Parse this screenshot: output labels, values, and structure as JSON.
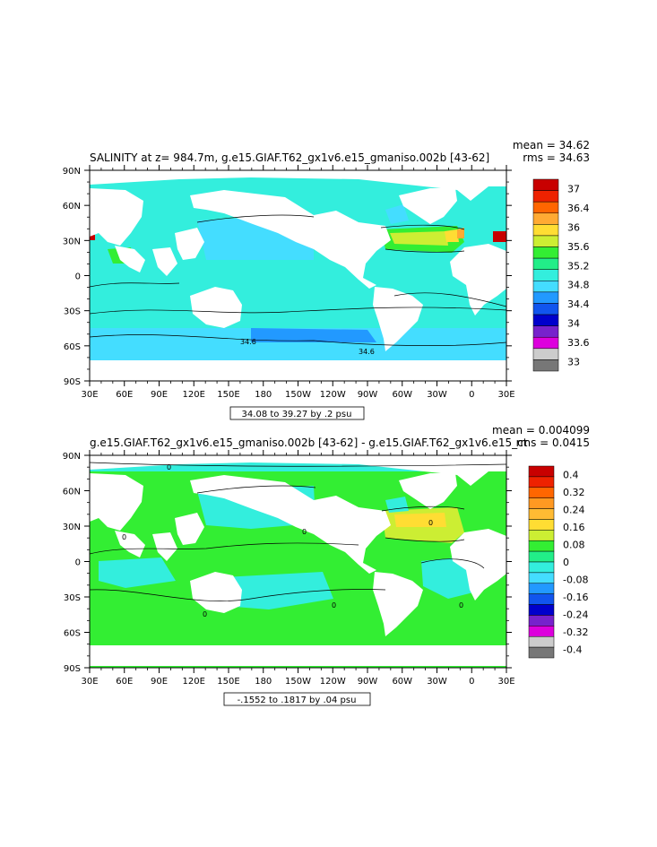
{
  "chart_data": [
    {
      "type": "heatmap",
      "title": "SALINITY at z= 984.7m, g.e15.GIAF.T62_gx1v6.e15_gmaniso.002b [43-62]",
      "stats": {
        "mean": "mean = 34.62",
        "rms": "rms = 34.63"
      },
      "x_ticks": [
        "30E",
        "60E",
        "90E",
        "120E",
        "150E",
        "180",
        "150W",
        "120W",
        "90W",
        "60W",
        "30W",
        "0",
        "30E"
      ],
      "y_ticks": [
        "90N",
        "60N",
        "30N",
        "0",
        "30S",
        "60S",
        "90S"
      ],
      "range_label": "34.08 to 39.27 by .2 psu",
      "contour_labels": [
        "34.6",
        "34.6"
      ],
      "colorbar": {
        "labels": [
          "37",
          "36.4",
          "36",
          "35.6",
          "35.2",
          "34.8",
          "34.4",
          "34",
          "33.6",
          "33"
        ],
        "colors": [
          "#c80000",
          "#ee2200",
          "#ff6600",
          "#ffaa33",
          "#ffdd33",
          "#ccee33",
          "#33ee33",
          "#22ee88",
          "#33eedd",
          "#44ddff",
          "#2299ff",
          "#1155ee",
          "#0000cc",
          "#7722cc",
          "#dd00dd",
          "#cccccc",
          "#777777"
        ]
      }
    },
    {
      "type": "heatmap",
      "title": "g.e15.GIAF.T62_gx1v6.e15_gmaniso.002b [43-62] - g.e15.GIAF.T62_gx1v6.e15_ct",
      "stats": {
        "mean": "mean = 0.004099",
        "rms": "rms = 0.0415"
      },
      "x_ticks": [
        "30E",
        "60E",
        "90E",
        "120E",
        "150E",
        "180",
        "150W",
        "120W",
        "90W",
        "60W",
        "30W",
        "0",
        "30E"
      ],
      "y_ticks": [
        "90N",
        "60N",
        "30N",
        "0",
        "30S",
        "60S",
        "90S"
      ],
      "range_label": "-.1552 to .1817 by .04 psu",
      "contour_labels": [
        "0",
        "0",
        "0",
        "0",
        "0",
        "0",
        "0"
      ],
      "colorbar": {
        "labels": [
          "0.4",
          "0.32",
          "0.24",
          "0.16",
          "0.08",
          "0",
          "-0.08",
          "-0.16",
          "-0.24",
          "-0.32",
          "-0.4"
        ],
        "colors": [
          "#c80000",
          "#ee2200",
          "#ff6600",
          "#ff9922",
          "#ffbb33",
          "#ffdd33",
          "#ccee33",
          "#33ee33",
          "#22ee88",
          "#33eedd",
          "#44ddff",
          "#2299ff",
          "#1155ee",
          "#0000cc",
          "#7722cc",
          "#dd00dd",
          "#cccccc",
          "#777777"
        ]
      }
    }
  ]
}
